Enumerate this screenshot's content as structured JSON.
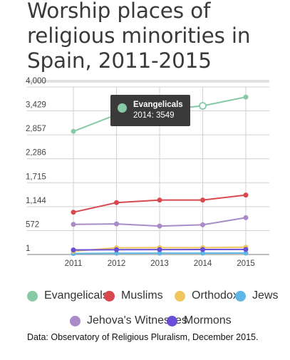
{
  "title": "Worship places of religious  minorities in Spain, 2011-2015",
  "source": "Data: Observatory of Religious Pluralism, December 2015.",
  "tooltip": {
    "series": "Evangelicals",
    "text": "2014: 3549",
    "color": "#88c9a6"
  },
  "chart_data": {
    "type": "line",
    "x": [
      2011,
      2012,
      2013,
      2014,
      2015
    ],
    "ylim": [
      1,
      4000
    ],
    "yticks": [
      1,
      572,
      1144,
      1715,
      2286,
      2857,
      3429,
      4000
    ],
    "ytick_labels": [
      "1",
      "572",
      "1,144",
      "1,715",
      "2,286",
      "2,857",
      "3,429",
      "4,000"
    ],
    "xlabel": "",
    "ylabel": "",
    "legend_position": "bottom",
    "series": [
      {
        "name": "Evangelicals",
        "color": "#88c9a6",
        "values": [
          2940,
          3340,
          3450,
          3549,
          3760
        ]
      },
      {
        "name": "Muslims",
        "color": "#d9484f",
        "values": [
          1010,
          1240,
          1300,
          1300,
          1420
        ]
      },
      {
        "name": "Orthodox",
        "color": "#f0c75e",
        "values": [
          80,
          160,
          165,
          165,
          175
        ]
      },
      {
        "name": "Jews",
        "color": "#5fb6e5",
        "values": [
          25,
          30,
          32,
          33,
          35
        ]
      },
      {
        "name": "Jehova's Witnesses",
        "color": "#a98bc8",
        "values": [
          720,
          730,
          680,
          710,
          880
        ]
      },
      {
        "name": "Mormons",
        "color": "#6a4fd6",
        "values": [
          110,
          115,
          118,
          120,
          122
        ]
      }
    ]
  }
}
